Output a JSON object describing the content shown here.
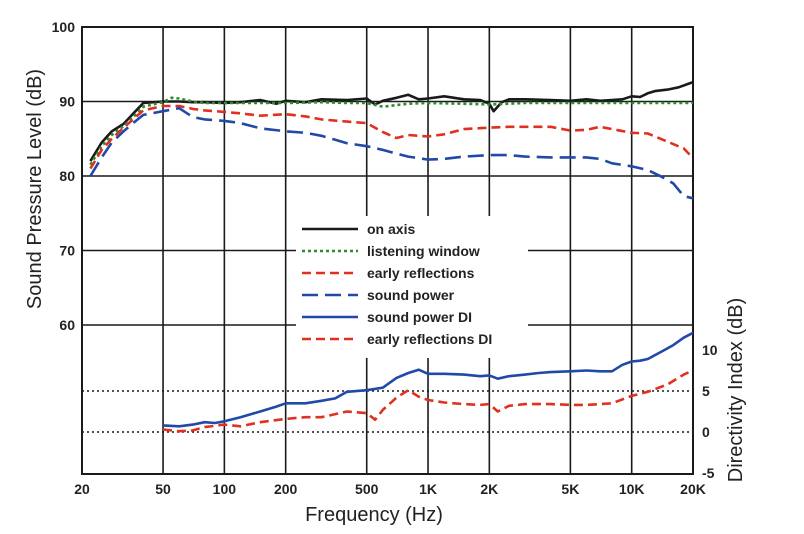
{
  "chart_data": {
    "type": "line",
    "xlabel": "Frequency (Hz)",
    "ylabel": "Sound Pressure Level (dB)",
    "y2label": "Directivity Index (dB)",
    "xscale": "log",
    "xlim": [
      20,
      20000
    ],
    "ylim": [
      40,
      100
    ],
    "y2lim": [
      -5,
      10
    ],
    "x_ticks": [
      20,
      50,
      100,
      200,
      500,
      1000,
      2000,
      5000,
      10000,
      20000
    ],
    "x_tick_labels": [
      "20",
      "50",
      "100",
      "200",
      "500",
      "1K",
      "2K",
      "5K",
      "10K",
      "20K"
    ],
    "y_ticks": [
      60,
      70,
      80,
      90,
      100
    ],
    "y_tick_labels": [
      "60",
      "70",
      "80",
      "90",
      "100"
    ],
    "y2_ticks": [
      -5,
      0,
      5,
      10
    ],
    "y2_tick_labels": [
      "-5",
      "0",
      "5",
      "10"
    ],
    "grid": true,
    "legend_position": "center",
    "series": [
      {
        "name": "on axis",
        "axis": "left",
        "color": "#1a1a1a",
        "style": "solid",
        "x": [
          22,
          25,
          28,
          32,
          36,
          40,
          50,
          60,
          70,
          80,
          100,
          120,
          150,
          180,
          200,
          250,
          300,
          400,
          500,
          550,
          600,
          700,
          800,
          900,
          1000,
          1200,
          1500,
          1800,
          2000,
          2100,
          2300,
          2500,
          3000,
          4000,
          5000,
          6000,
          7000,
          8000,
          9000,
          10000,
          11000,
          12000,
          13000,
          15000,
          17000,
          20000
        ],
        "y": [
          82,
          84.5,
          86,
          87,
          88.5,
          89.8,
          90,
          90,
          89.9,
          89.9,
          89.8,
          89.9,
          90.2,
          89.7,
          90.1,
          89.9,
          90.3,
          90.2,
          90.4,
          89.6,
          90.1,
          90.5,
          90.9,
          90.3,
          90.4,
          90.7,
          90.3,
          90.2,
          89.7,
          88.7,
          89.9,
          90.3,
          90.3,
          90.2,
          90.1,
          90.3,
          90.1,
          90.2,
          90.3,
          90.7,
          90.6,
          91.1,
          91.4,
          91.6,
          91.9,
          92.6
        ]
      },
      {
        "name": "listening window",
        "axis": "left",
        "color": "#2e8b2e",
        "style": "dotted",
        "x": [
          22,
          25,
          28,
          32,
          36,
          40,
          50,
          55,
          60,
          70,
          80,
          100,
          150,
          200,
          300,
          400,
          500,
          600,
          800,
          1000,
          1500,
          2000,
          3000,
          5000,
          7000,
          10000,
          15000,
          20000
        ],
        "y": [
          81.5,
          84,
          85.5,
          86.7,
          88,
          89.3,
          89.9,
          90.5,
          90.4,
          90,
          89.8,
          89.8,
          89.8,
          89.8,
          89.9,
          89.8,
          89.8,
          89.3,
          89.7,
          89.8,
          89.7,
          89.6,
          89.8,
          89.8,
          89.8,
          89.8,
          89.8,
          89.8
        ]
      },
      {
        "name": "early reflections",
        "axis": "left",
        "color": "#e0301e",
        "style": "dashed",
        "x": [
          22,
          25,
          28,
          32,
          36,
          40,
          50,
          60,
          70,
          80,
          100,
          120,
          150,
          200,
          250,
          300,
          400,
          500,
          600,
          700,
          800,
          1000,
          1200,
          1500,
          2000,
          2500,
          3000,
          4000,
          5000,
          6000,
          7000,
          8000,
          10000,
          12000,
          15000,
          18000,
          20000
        ],
        "y": [
          81,
          83.5,
          85,
          86.5,
          87.7,
          88.8,
          89.4,
          89.4,
          89,
          88.8,
          88.6,
          88.4,
          88.1,
          88.3,
          88,
          87.6,
          87.3,
          87.1,
          85.9,
          85.1,
          85.5,
          85.3,
          85.6,
          86.3,
          86.5,
          86.6,
          86.6,
          86.6,
          86.1,
          86.2,
          86.6,
          86.3,
          85.8,
          85.7,
          84.6,
          83.7,
          82.4
        ]
      },
      {
        "name": "sound power",
        "axis": "left",
        "color": "#2149a8",
        "style": "longdash",
        "x": [
          22,
          25,
          28,
          32,
          36,
          40,
          50,
          60,
          70,
          80,
          100,
          120,
          150,
          200,
          250,
          300,
          400,
          500,
          600,
          700,
          800,
          1000,
          1200,
          1500,
          2000,
          2500,
          3000,
          4000,
          5000,
          6000,
          7000,
          8000,
          10000,
          12000,
          14000,
          16000,
          18000,
          20000
        ],
        "y": [
          80,
          82.5,
          84.5,
          86,
          87.2,
          88.2,
          88.7,
          89.1,
          87.9,
          87.6,
          87.4,
          87.1,
          86.4,
          86,
          85.8,
          85.4,
          84.4,
          84,
          83.5,
          83,
          82.6,
          82.2,
          82.3,
          82.6,
          82.8,
          82.8,
          82.6,
          82.5,
          82.5,
          82.5,
          82.3,
          81.7,
          81.3,
          80.8,
          79.9,
          79,
          77.3,
          77
        ]
      },
      {
        "name": "sound power DI",
        "axis": "right",
        "color": "#2149a8",
        "style": "solid",
        "x": [
          50,
          60,
          70,
          80,
          90,
          100,
          120,
          150,
          180,
          200,
          250,
          300,
          350,
          400,
          500,
          600,
          700,
          800,
          900,
          1000,
          1200,
          1500,
          1800,
          2000,
          2200,
          2500,
          3000,
          3500,
          4000,
          5000,
          6000,
          7000,
          8000,
          9000,
          10000,
          11000,
          12000,
          14000,
          16000,
          18000,
          20000
        ],
        "y": [
          0.8,
          0.7,
          0.9,
          1.2,
          1.1,
          1.3,
          1.8,
          2.5,
          3.1,
          3.5,
          3.5,
          3.8,
          4.1,
          4.9,
          5.1,
          5.4,
          6.6,
          7.2,
          7.6,
          7.1,
          7.1,
          7.0,
          6.8,
          6.9,
          6.5,
          6.8,
          7.0,
          7.2,
          7.3,
          7.4,
          7.5,
          7.4,
          7.4,
          8.2,
          8.6,
          8.7,
          8.9,
          9.8,
          10.6,
          11.5,
          12.1
        ]
      },
      {
        "name": "early reflections DI",
        "axis": "right",
        "color": "#e0301e",
        "style": "dashed",
        "x": [
          50,
          60,
          70,
          80,
          100,
          120,
          150,
          200,
          250,
          300,
          400,
          500,
          550,
          600,
          700,
          800,
          900,
          1000,
          1200,
          1500,
          1800,
          2000,
          2200,
          2500,
          3000,
          4000,
          5000,
          6000,
          7000,
          8000,
          10000,
          12000,
          15000,
          18000,
          20000
        ],
        "y": [
          0.3,
          0.1,
          0.2,
          0.6,
          0.9,
          0.7,
          1.2,
          1.6,
          1.8,
          1.8,
          2.5,
          2.3,
          1.5,
          2.7,
          4.2,
          5.1,
          4.3,
          3.9,
          3.6,
          3.4,
          3.3,
          3.4,
          2.5,
          3.2,
          3.4,
          3.4,
          3.3,
          3.3,
          3.4,
          3.5,
          4.4,
          4.9,
          5.8,
          7.0,
          7.5
        ]
      }
    ]
  }
}
